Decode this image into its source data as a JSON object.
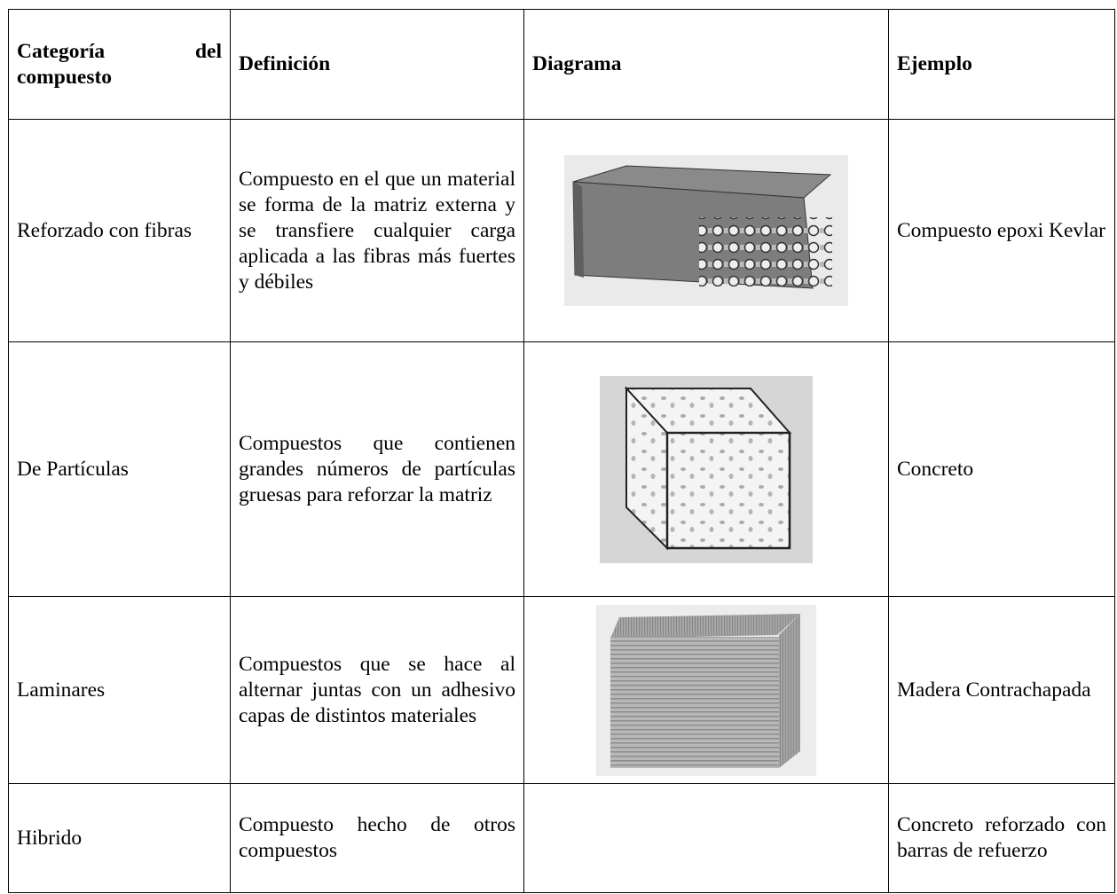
{
  "table": {
    "header": [
      "Categoría del compuesto",
      "Definición",
      "Diagrama",
      "Ejemplo"
    ],
    "rows": [
      {
        "category": "Reforzado con fibras",
        "definition": "Compuesto en el que un material se forma de la matriz externa y se transfiere cualquier carga aplicada a las fibras más fuertes y débiles",
        "example": "Compuesto epoxi Kevlar"
      },
      {
        "category": "De Partículas",
        "definition": "Compuestos que contienen grandes números de partículas gruesas para reforzar la matriz",
        "example": "Concreto"
      },
      {
        "category": "Laminares",
        "definition": "Compuestos que se hace al alternar juntas con un adhesivo capas de distintos materiales",
        "example": "Madera Contrachapada"
      },
      {
        "category": "Hibrido",
        "definition": "Compuesto hecho de otros compuestos",
        "example": "Concreto reforzado con barras de refuerzo"
      }
    ]
  }
}
